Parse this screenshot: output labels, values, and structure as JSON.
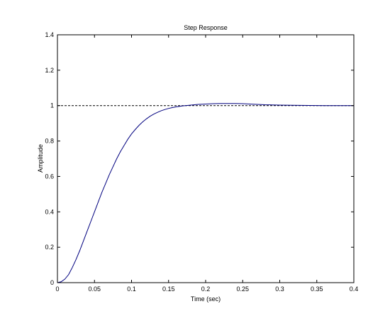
{
  "chart_data": {
    "type": "line",
    "title": "Step Response",
    "xlabel": "Time (sec)",
    "ylabel": "Amplitude",
    "xlim": [
      0,
      0.4
    ],
    "ylim": [
      0,
      1.4
    ],
    "xticks": [
      0,
      0.05,
      0.1,
      0.15,
      0.2,
      0.25,
      0.3,
      0.35,
      0.4
    ],
    "xtick_labels": [
      "0",
      "0.05",
      "0.1",
      "0.15",
      "0.2",
      "0.25",
      "0.3",
      "0.35",
      "0.4"
    ],
    "yticks": [
      0,
      0.2,
      0.4,
      0.6,
      0.8,
      1,
      1.2,
      1.4
    ],
    "ytick_labels": [
      "0",
      "0.2",
      "0.4",
      "0.6",
      "0.8",
      "1",
      "1.2",
      "1.4"
    ],
    "grid": false,
    "reference_line": {
      "y": 1,
      "style": "dashed",
      "color": "#000000"
    },
    "series": [
      {
        "color": "#00007f",
        "x": [
          0,
          0.005,
          0.01,
          0.015,
          0.02,
          0.025,
          0.03,
          0.035,
          0.04,
          0.045,
          0.05,
          0.055,
          0.06,
          0.065,
          0.07,
          0.075,
          0.08,
          0.085,
          0.09,
          0.095,
          0.1,
          0.105,
          0.11,
          0.115,
          0.12,
          0.125,
          0.13,
          0.135,
          0.14,
          0.145,
          0.15,
          0.155,
          0.16,
          0.165,
          0.17,
          0.175,
          0.18,
          0.185,
          0.19,
          0.195,
          0.2,
          0.21,
          0.22,
          0.23,
          0.24,
          0.25,
          0.26,
          0.27,
          0.28,
          0.29,
          0.3,
          0.32,
          0.34,
          0.36,
          0.38,
          0.4
        ],
        "y": [
          0,
          0.005,
          0.02,
          0.045,
          0.085,
          0.13,
          0.18,
          0.235,
          0.29,
          0.345,
          0.4,
          0.455,
          0.51,
          0.56,
          0.61,
          0.655,
          0.7,
          0.74,
          0.775,
          0.81,
          0.84,
          0.865,
          0.888,
          0.908,
          0.925,
          0.94,
          0.952,
          0.962,
          0.971,
          0.978,
          0.984,
          0.989,
          0.993,
          0.996,
          0.999,
          1.001,
          1.003,
          1.005,
          1.007,
          1.008,
          1.009,
          1.011,
          1.012,
          1.012,
          1.012,
          1.011,
          1.009,
          1.007,
          1.005,
          1.004,
          1.003,
          1.002,
          1.001,
          1.0,
          1.0,
          1.0
        ]
      }
    ]
  }
}
